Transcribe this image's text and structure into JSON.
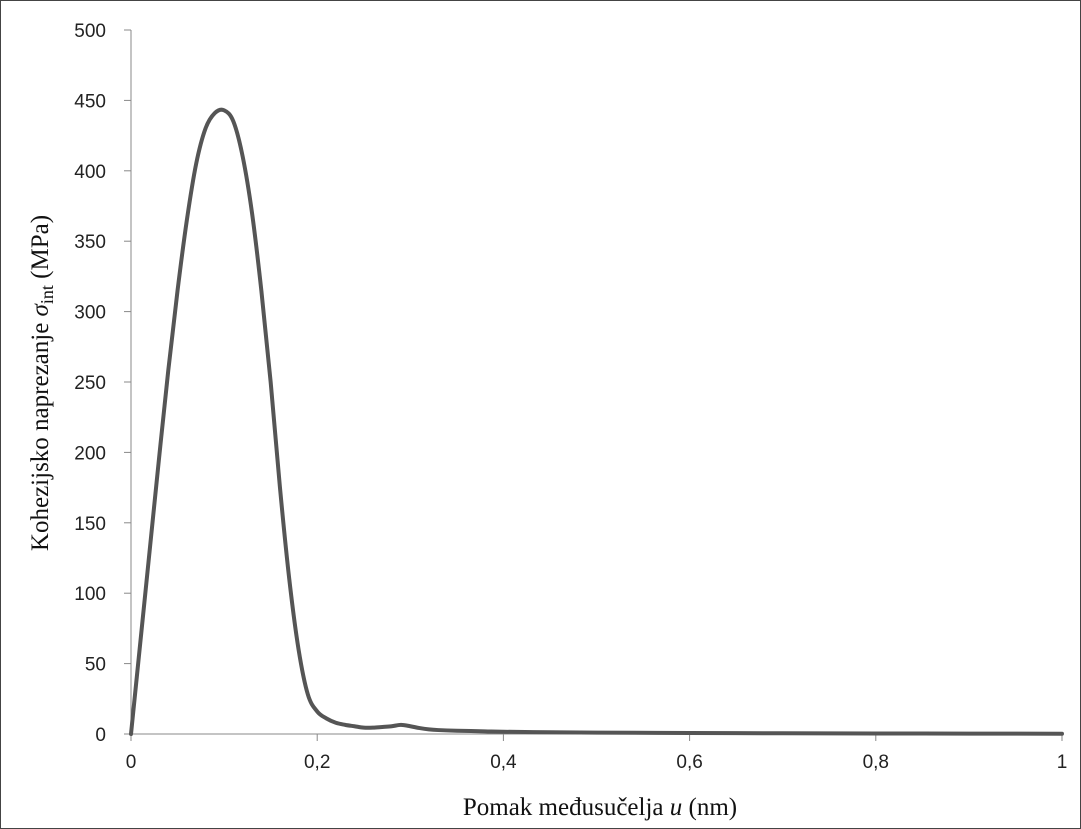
{
  "chart_data": {
    "type": "line",
    "title": "",
    "xlabel": {
      "prefix": "Pomak međusučelja ",
      "var": "u",
      "suffix": " (nm)"
    },
    "ylabel": {
      "prefix": "Kohezijsko naprezanje ",
      "var": "σ",
      "sub": "int",
      "suffix": " (MPa)"
    },
    "xlim": [
      0,
      1
    ],
    "ylim": [
      0,
      500
    ],
    "x_ticks": [
      0,
      0.2,
      0.4,
      0.6,
      0.8,
      1
    ],
    "x_tick_labels": [
      "0",
      "0,2",
      "0,4",
      "0,6",
      "0,8",
      "1"
    ],
    "y_ticks": [
      0,
      50,
      100,
      150,
      200,
      250,
      300,
      350,
      400,
      450,
      500
    ],
    "y_tick_labels": [
      "0",
      "50",
      "100",
      "150",
      "200",
      "250",
      "300",
      "350",
      "400",
      "450",
      "500"
    ],
    "grid": false,
    "series_color": "#555555",
    "series": [
      {
        "x": [
          0,
          0.01,
          0.02,
          0.03,
          0.04,
          0.05,
          0.06,
          0.07,
          0.08,
          0.09,
          0.1,
          0.11,
          0.12,
          0.13,
          0.14,
          0.15,
          0.16,
          0.17,
          0.18,
          0.19,
          0.2,
          0.21,
          0.22,
          0.23,
          0.24,
          0.25,
          0.26,
          0.27,
          0.28,
          0.29,
          0.3,
          0.31,
          0.32,
          0.33,
          0.35,
          0.38,
          0.4,
          0.45,
          0.5,
          0.6,
          0.7,
          0.8,
          0.9,
          1
        ],
        "y": [
          0,
          65,
          130,
          195,
          258,
          315,
          365,
          405,
          430,
          441,
          443,
          435,
          410,
          370,
          315,
          250,
          175,
          110,
          60,
          28,
          16,
          11,
          8,
          6.5,
          5.5,
          4.5,
          4.5,
          5,
          5.5,
          6.5,
          5.5,
          4.2,
          3.3,
          2.8,
          2.3,
          1.9,
          1.6,
          1.2,
          1.0,
          0.7,
          0.5,
          0.4,
          0.3,
          0.2
        ]
      }
    ]
  }
}
